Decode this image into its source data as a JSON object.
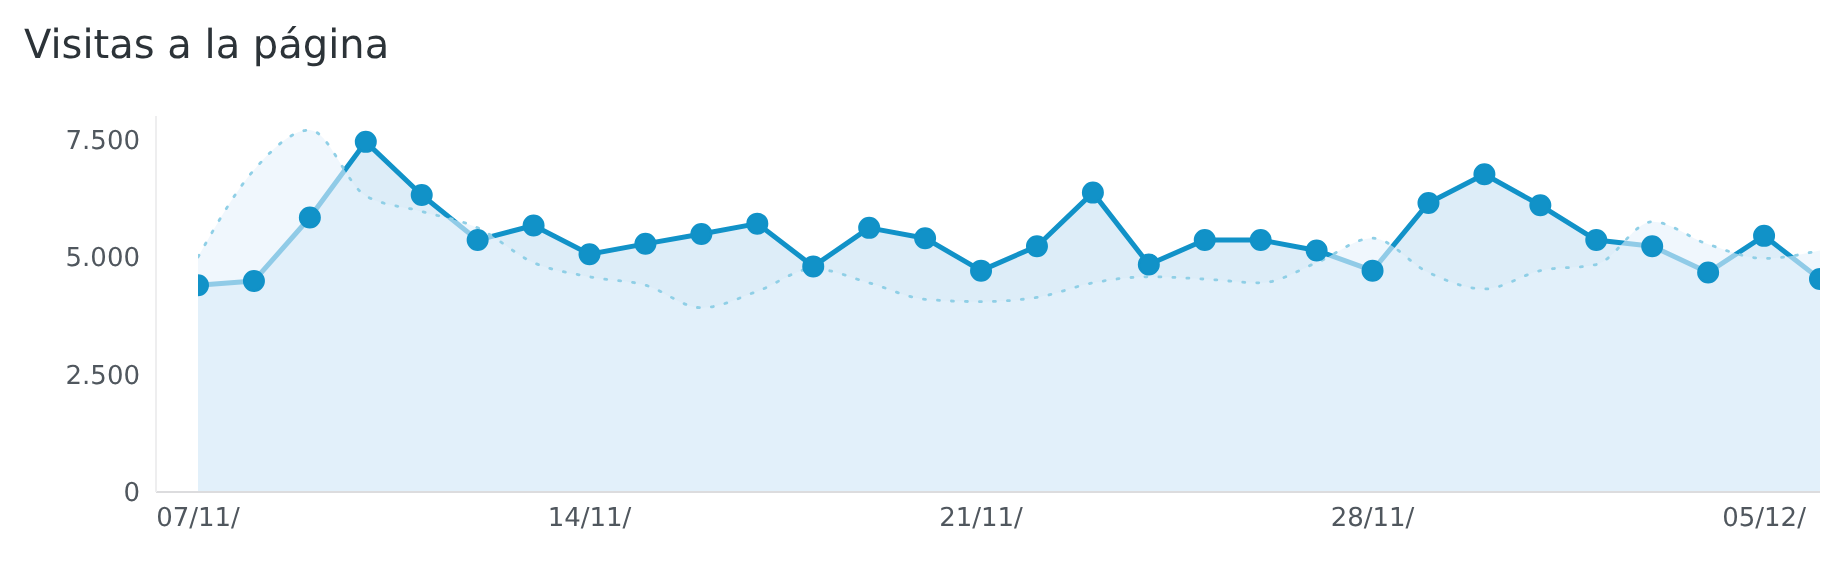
{
  "chart_data": {
    "type": "area",
    "title": "Visitas a la página",
    "categories": [
      "07/11/",
      null,
      null,
      null,
      null,
      null,
      null,
      "14/11/",
      null,
      null,
      null,
      null,
      null,
      null,
      "21/11/",
      null,
      null,
      null,
      null,
      null,
      null,
      "28/11/",
      null,
      null,
      null,
      null,
      null,
      null,
      "05/12/",
      null
    ],
    "series": [
      {
        "color": "#8fcfe6",
        "line_style": "dotted",
        "marker": "none",
        "values": [
          5000,
          6850,
          7700,
          6300,
          5970,
          5620,
          4880,
          4580,
          4400,
          3920,
          4270,
          4750,
          4450,
          4100,
          4050,
          4140,
          4450,
          4580,
          4530,
          4450,
          4880,
          5400,
          4670,
          4320,
          4710,
          4840,
          5750,
          5270,
          4970,
          5140
        ]
      },
      {
        "color": "#1192c8",
        "line_style": "solid",
        "marker": "circle",
        "values": [
          4400,
          4490,
          5840,
          7450,
          6320,
          5360,
          5670,
          5060,
          5280,
          5490,
          5710,
          4800,
          5620,
          5400,
          4710,
          5230,
          6370,
          4840,
          5360,
          5360,
          5140,
          4710,
          6150,
          6760,
          6100,
          5360,
          5230,
          4670,
          5450,
          4530
        ]
      }
    ],
    "ylim": [
      0,
      8000
    ],
    "yticks": [
      {
        "value": 0,
        "label": "0"
      },
      {
        "value": 2500,
        "label": "2.500"
      },
      {
        "value": 5000,
        "label": "5.000"
      },
      {
        "value": 7500,
        "label": "7.500"
      }
    ],
    "grid": false,
    "legend": false
  }
}
